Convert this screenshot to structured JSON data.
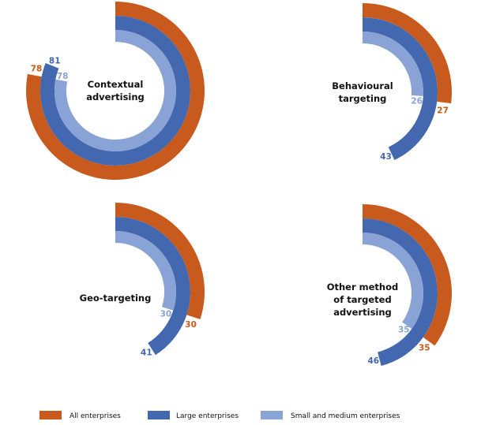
{
  "chart_data": {
    "type": "radial-bar",
    "scale_max": 100,
    "unit": "%",
    "series_names": [
      "All enterprises",
      "Large enterprises",
      "Small and medium enterprises"
    ],
    "colors": [
      "#c85a1e",
      "#4468b0",
      "#8aa3d6"
    ],
    "panels": [
      {
        "title_lines": [
          "Contextual",
          "advertising"
        ],
        "values": [
          78,
          81,
          78
        ]
      },
      {
        "title_lines": [
          "Behavioural",
          "targeting"
        ],
        "values": [
          27,
          43,
          26
        ]
      },
      {
        "title_lines": [
          "Geo-targeting"
        ],
        "values": [
          30,
          41,
          30
        ]
      },
      {
        "title_lines": [
          "Other method",
          "of targeted",
          "advertising"
        ],
        "values": [
          35,
          46,
          35
        ]
      }
    ],
    "legend": {
      "placement": "bottom",
      "entries": [
        "All enterprises",
        "Large enterprises",
        "Small and medium enterprises"
      ]
    }
  }
}
